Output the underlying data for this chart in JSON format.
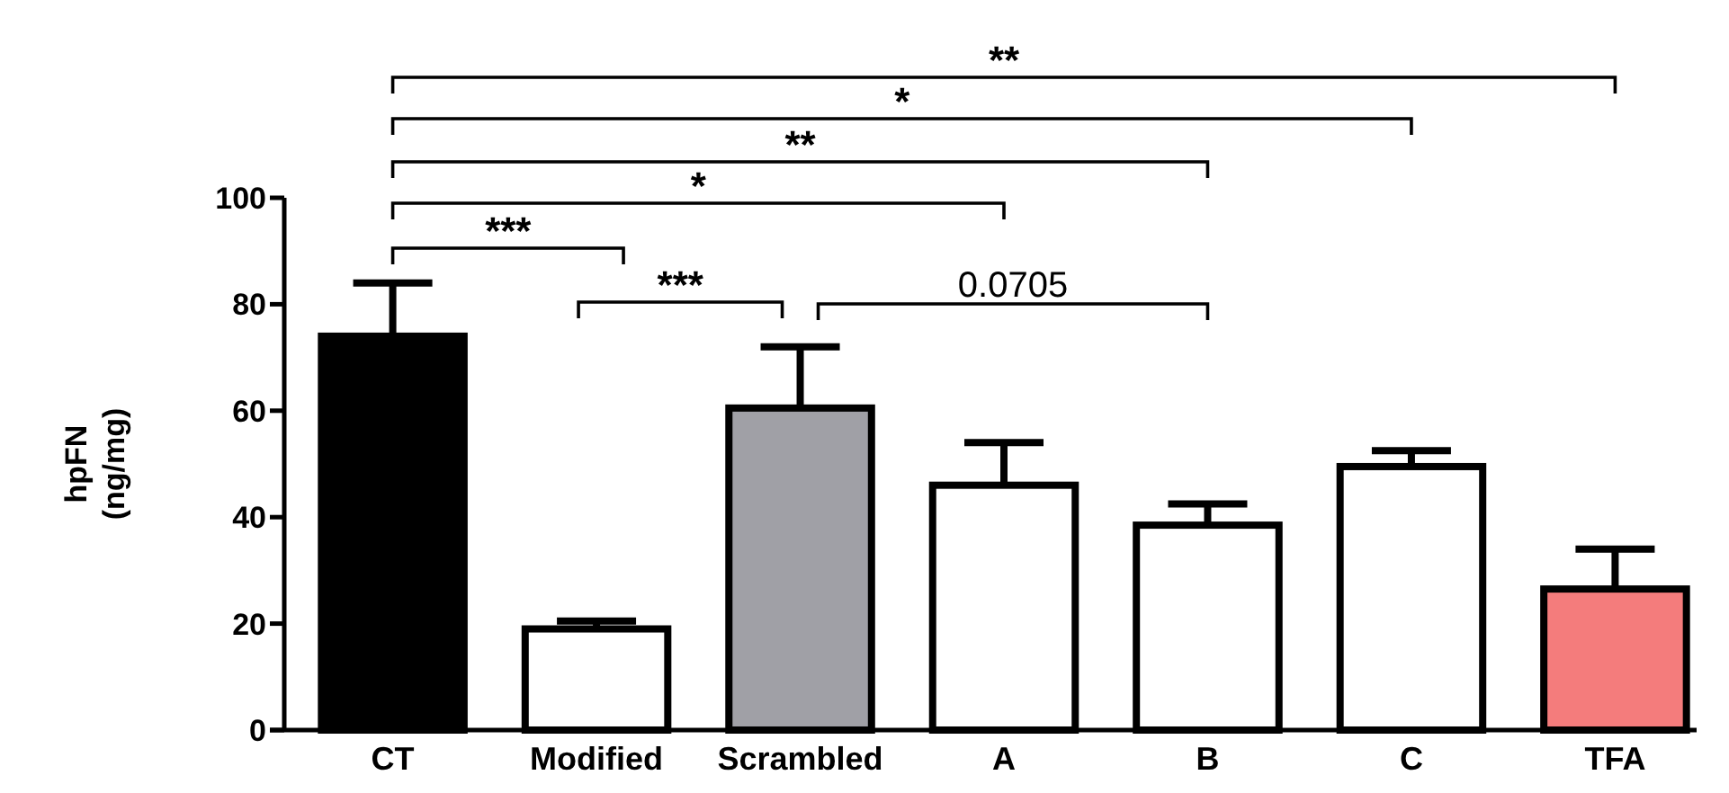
{
  "chart_data": {
    "type": "bar",
    "ylabel": "hpFN\n(ng/mg)",
    "categories": [
      "CT",
      "Modified",
      "Scrambled",
      "A",
      "B",
      "C",
      "TFA"
    ],
    "values": [
      74,
      19,
      60.5,
      46,
      38.5,
      49.5,
      26.5
    ],
    "colors": [
      "#000000",
      "#ffffff",
      "#a0a0a6",
      "#ffffff",
      "#ffffff",
      "#ffffff",
      "#f47c7c"
    ],
    "errors": [
      [
        74,
        84
      ],
      [
        19,
        20.5
      ],
      [
        60.5,
        72
      ],
      [
        46,
        54
      ],
      [
        38.5,
        42.5
      ],
      [
        49.5,
        52.5
      ],
      [
        26.5,
        34
      ]
    ],
    "ylim": [
      0,
      100
    ],
    "yticks": [
      0,
      20,
      40,
      60,
      80,
      100
    ],
    "grid": false,
    "annotations": [
      "***",
      "***",
      "0.0705",
      "*",
      "**",
      "*",
      "**"
    ]
  }
}
